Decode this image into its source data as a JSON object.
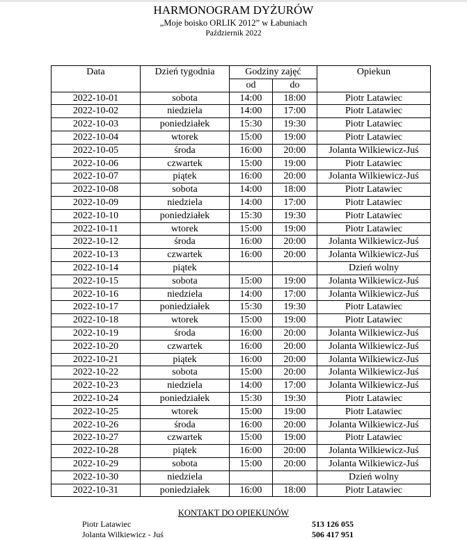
{
  "title": "HARMONOGRAM DYŻURÓW",
  "subtitle": "„Moje boisko ORLIK 2012” w Łabuniach",
  "month": "Październik 2022",
  "headers": {
    "date": "Data",
    "day": "Dzień tygodnia",
    "hours": "Godziny zajęć",
    "from": "od",
    "to": "do",
    "guardian": "Opiekun"
  },
  "rows": [
    [
      "2022-10-01",
      "sobota",
      "14:00",
      "18:00",
      "Piotr Latawiec"
    ],
    [
      "2022-10-02",
      "niedziela",
      "14:00",
      "17:00",
      "Piotr Latawiec"
    ],
    [
      "2022-10-03",
      "poniedziałek",
      "15:30",
      "19:30",
      "Piotr Latawiec"
    ],
    [
      "2022-10-04",
      "wtorek",
      "15:00",
      "19:00",
      "Piotr Latawiec"
    ],
    [
      "2022-10-05",
      "środa",
      "16:00",
      "20:00",
      "Jolanta Wilkiewicz-Juś"
    ],
    [
      "2022-10-06",
      "czwartek",
      "15:00",
      "19:00",
      "Piotr Latawiec"
    ],
    [
      "2022-10-07",
      "piątek",
      "16:00",
      "20:00",
      "Jolanta Wilkiewicz-Juś"
    ],
    [
      "2022-10-08",
      "sobota",
      "14:00",
      "18:00",
      "Piotr Latawiec"
    ],
    [
      "2022-10-09",
      "niedziela",
      "14:00",
      "17:00",
      "Piotr Latawiec"
    ],
    [
      "2022-10-10",
      "poniedziałek",
      "15:30",
      "19:30",
      "Piotr Latawiec"
    ],
    [
      "2022-10-11",
      "wtorek",
      "15:00",
      "19:00",
      "Piotr Latawiec"
    ],
    [
      "2022-10-12",
      "środa",
      "16:00",
      "20:00",
      "Jolanta Wilkiewicz-Juś"
    ],
    [
      "2022-10-13",
      "czwartek",
      "16:00",
      "20:00",
      "Jolanta Wilkiewicz-Juś"
    ],
    [
      "2022-10-14",
      "piątek",
      "",
      "",
      "Dzień wolny"
    ],
    [
      "2022-10-15",
      "sobota",
      "15:00",
      "19:00",
      "Jolanta Wilkiewicz-Juś"
    ],
    [
      "2022-10-16",
      "niedziela",
      "14:00",
      "17:00",
      "Jolanta Wilkiewicz-Juś"
    ],
    [
      "2022-10-17",
      "poniedziałek",
      "15:30",
      "19:30",
      "Piotr Latawiec"
    ],
    [
      "2022-10-18",
      "wtorek",
      "15:00",
      "19:00",
      "Piotr Latawiec"
    ],
    [
      "2022-10-19",
      "środa",
      "16:00",
      "20:00",
      "Jolanta Wilkiewicz-Juś"
    ],
    [
      "2022-10-20",
      "czwartek",
      "16:00",
      "20:00",
      "Jolanta Wilkiewicz-Juś"
    ],
    [
      "2022-10-21",
      "piątek",
      "16:00",
      "20:00",
      "Jolanta Wilkiewicz-Juś"
    ],
    [
      "2022-10-22",
      "sobota",
      "15:00",
      "20:00",
      "Jolanta Wilkiewicz-Juś"
    ],
    [
      "2022-10-23",
      "niedziela",
      "14:00",
      "17:00",
      "Jolanta Wilkiewicz-Juś"
    ],
    [
      "2022-10-24",
      "poniedziałek",
      "15:30",
      "19:30",
      "Piotr Latawiec"
    ],
    [
      "2022-10-25",
      "wtorek",
      "15:00",
      "19:00",
      "Piotr Latawiec"
    ],
    [
      "2022-10-26",
      "środa",
      "16:00",
      "20:00",
      "Jolanta Wilkiewicz-Juś"
    ],
    [
      "2022-10-27",
      "czwartek",
      "15:00",
      "19:00",
      "Piotr Latawiec"
    ],
    [
      "2022-10-28",
      "piątek",
      "16:00",
      "20:00",
      "Jolanta Wilkiewicz-Juś"
    ],
    [
      "2022-10-29",
      "sobota",
      "15:00",
      "20:00",
      "Jolanta Wilkiewicz-Juś"
    ],
    [
      "2022-10-30",
      "niedziela",
      "",
      "",
      "Dzień wolny"
    ],
    [
      "2022-10-31",
      "poniedziałek",
      "16:00",
      "18:00",
      "Piotr Latawiec"
    ]
  ],
  "contacts": {
    "title": "KONTAKT DO OPIEKUNÓW",
    "items": [
      {
        "name": "Piotr Latawiec",
        "phone": "513 126 055"
      },
      {
        "name": "Jolanta Wilkiewicz - Juś",
        "phone": "506 417 951"
      }
    ]
  }
}
